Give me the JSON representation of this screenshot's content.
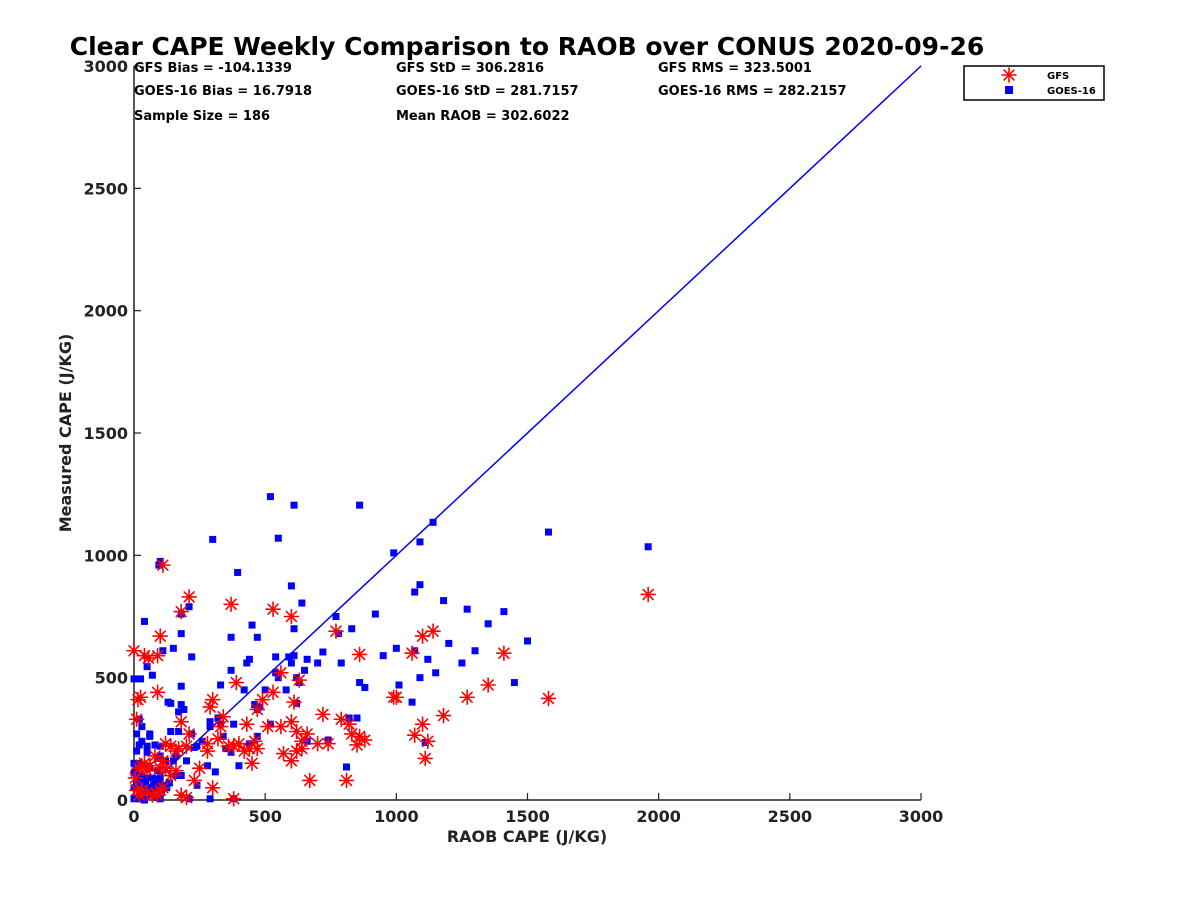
{
  "chart_data": {
    "type": "scatter",
    "title": "Clear CAPE Weekly Comparison to RAOB over CONUS 2020-09-26",
    "xlabel": "RAOB CAPE (J/KG)",
    "ylabel": "Measured CAPE (J/KG)",
    "xlim": [
      0,
      3000
    ],
    "ylim": [
      0,
      3000
    ],
    "xticks": [
      "0",
      "500",
      "1000",
      "1500",
      "2000",
      "2500",
      "3000"
    ],
    "yticks": [
      "0",
      "500",
      "1000",
      "1500",
      "2000",
      "2500",
      "3000"
    ],
    "grid": false,
    "legend_position": "top-right, outside plot",
    "reference_line": {
      "from": [
        0,
        0
      ],
      "to": [
        3000,
        3000
      ],
      "color": "#0000ff"
    },
    "stats": {
      "gfs_bias": "GFS Bias = -104.1339",
      "gfs_std": "GFS StD = 306.2816",
      "gfs_rms": "GFS RMS = 323.5001",
      "goes_bias": "GOES-16 Bias = 16.7918",
      "goes_std": "GOES-16 StD = 281.7157",
      "goes_rms": "GOES-16 RMS = 282.2157",
      "sample_size": "Sample Size = 186",
      "mean_raob": "Mean RAOB = 302.6022"
    },
    "series": [
      {
        "name": "GFS",
        "marker": "asterisk",
        "color": "#ff0000",
        "points": [
          [
            0,
            610
          ],
          [
            15,
            410
          ],
          [
            25,
            420
          ],
          [
            40,
            590
          ],
          [
            55,
            580
          ],
          [
            90,
            590
          ],
          [
            100,
            670
          ],
          [
            110,
            960
          ],
          [
            180,
            770
          ],
          [
            210,
            830
          ],
          [
            370,
            800
          ],
          [
            530,
            780
          ],
          [
            600,
            750
          ],
          [
            770,
            690
          ],
          [
            1100,
            670
          ],
          [
            1140,
            690
          ],
          [
            1410,
            600
          ],
          [
            1580,
            415
          ],
          [
            1960,
            840
          ],
          [
            1060,
            600
          ],
          [
            860,
            595
          ],
          [
            1270,
            420
          ],
          [
            1350,
            470
          ],
          [
            990,
            420
          ],
          [
            1000,
            420
          ],
          [
            1180,
            345
          ],
          [
            1100,
            310
          ],
          [
            1120,
            240
          ],
          [
            1110,
            170
          ],
          [
            1070,
            265
          ],
          [
            880,
            245
          ],
          [
            860,
            260
          ],
          [
            850,
            225
          ],
          [
            830,
            270
          ],
          [
            790,
            330
          ],
          [
            820,
            310
          ],
          [
            740,
            230
          ],
          [
            720,
            350
          ],
          [
            660,
            270
          ],
          [
            670,
            80
          ],
          [
            810,
            80
          ],
          [
            560,
            520
          ],
          [
            530,
            440
          ],
          [
            610,
            400
          ],
          [
            600,
            320
          ],
          [
            620,
            280
          ],
          [
            600,
            160
          ],
          [
            620,
            200
          ],
          [
            640,
            210
          ],
          [
            630,
            490
          ],
          [
            560,
            300
          ],
          [
            510,
            300
          ],
          [
            490,
            410
          ],
          [
            470,
            370
          ],
          [
            460,
            240
          ],
          [
            450,
            150
          ],
          [
            440,
            210
          ],
          [
            420,
            200
          ],
          [
            400,
            230
          ],
          [
            390,
            480
          ],
          [
            380,
            220
          ],
          [
            360,
            220
          ],
          [
            330,
            300
          ],
          [
            320,
            250
          ],
          [
            300,
            410
          ],
          [
            290,
            380
          ],
          [
            280,
            230
          ],
          [
            300,
            50
          ],
          [
            380,
            5
          ],
          [
            210,
            270
          ],
          [
            200,
            220
          ],
          [
            180,
            320
          ],
          [
            170,
            210
          ],
          [
            160,
            200
          ],
          [
            140,
            220
          ],
          [
            120,
            230
          ],
          [
            110,
            160
          ],
          [
            100,
            130
          ],
          [
            90,
            440
          ],
          [
            80,
            180
          ],
          [
            60,
            140
          ],
          [
            50,
            120
          ],
          [
            40,
            150
          ],
          [
            30,
            140
          ],
          [
            20,
            130
          ],
          [
            10,
            330
          ],
          [
            5,
            90
          ],
          [
            10,
            40
          ],
          [
            20,
            20
          ],
          [
            30,
            40
          ],
          [
            50,
            30
          ],
          [
            70,
            20
          ],
          [
            90,
            20
          ],
          [
            100,
            40
          ],
          [
            110,
            50
          ],
          [
            120,
            130
          ],
          [
            140,
            100
          ],
          [
            160,
            120
          ],
          [
            180,
            20
          ],
          [
            200,
            10
          ],
          [
            230,
            80
          ],
          [
            250,
            130
          ],
          [
            280,
            200
          ],
          [
            340,
            340
          ],
          [
            430,
            310
          ],
          [
            470,
            210
          ],
          [
            570,
            190
          ],
          [
            640,
            240
          ],
          [
            700,
            230
          ]
        ]
      },
      {
        "name": "GOES-16",
        "marker": "square",
        "color": "#0000ff",
        "points": [
          [
            520,
            1240
          ],
          [
            610,
            1205
          ],
          [
            860,
            1205
          ],
          [
            1140,
            1135
          ],
          [
            1580,
            1095
          ],
          [
            1960,
            1035
          ],
          [
            300,
            1065
          ],
          [
            550,
            1070
          ],
          [
            990,
            1010
          ],
          [
            1090,
            1055
          ],
          [
            100,
            975
          ],
          [
            95,
            960
          ],
          [
            395,
            930
          ],
          [
            600,
            875
          ],
          [
            1090,
            880
          ],
          [
            1070,
            850
          ],
          [
            1180,
            815
          ],
          [
            210,
            790
          ],
          [
            640,
            805
          ],
          [
            1270,
            780
          ],
          [
            1410,
            770
          ],
          [
            180,
            760
          ],
          [
            770,
            750
          ],
          [
            40,
            730
          ],
          [
            1350,
            720
          ],
          [
            450,
            715
          ],
          [
            610,
            700
          ],
          [
            180,
            680
          ],
          [
            370,
            665
          ],
          [
            470,
            665
          ],
          [
            1000,
            620
          ],
          [
            150,
            620
          ],
          [
            110,
            610
          ],
          [
            1070,
            610
          ],
          [
            720,
            605
          ],
          [
            1120,
            575
          ],
          [
            220,
            585
          ],
          [
            540,
            585
          ],
          [
            590,
            585
          ],
          [
            610,
            590
          ],
          [
            660,
            575
          ],
          [
            440,
            575
          ],
          [
            430,
            560
          ],
          [
            600,
            560
          ],
          [
            790,
            560
          ],
          [
            50,
            545
          ],
          [
            370,
            530
          ],
          [
            650,
            530
          ],
          [
            540,
            520
          ],
          [
            620,
            500
          ],
          [
            70,
            510
          ],
          [
            1090,
            500
          ],
          [
            25,
            495
          ],
          [
            0,
            495
          ],
          [
            630,
            480
          ],
          [
            860,
            480
          ],
          [
            880,
            460
          ],
          [
            180,
            465
          ],
          [
            330,
            470
          ],
          [
            500,
            450
          ],
          [
            460,
            390
          ],
          [
            470,
            370
          ],
          [
            620,
            395
          ],
          [
            850,
            335
          ],
          [
            820,
            335
          ],
          [
            130,
            400
          ],
          [
            140,
            395
          ],
          [
            180,
            390
          ],
          [
            320,
            335
          ],
          [
            330,
            310
          ],
          [
            380,
            310
          ],
          [
            290,
            300
          ],
          [
            290,
            320
          ],
          [
            520,
            310
          ],
          [
            20,
            330
          ],
          [
            30,
            300
          ],
          [
            140,
            280
          ],
          [
            170,
            280
          ],
          [
            60,
            270
          ],
          [
            10,
            270
          ],
          [
            30,
            240
          ],
          [
            20,
            225
          ],
          [
            50,
            220
          ],
          [
            80,
            225
          ],
          [
            100,
            220
          ],
          [
            230,
            215
          ],
          [
            370,
            195
          ],
          [
            440,
            230
          ],
          [
            470,
            260
          ],
          [
            660,
            240
          ],
          [
            740,
            245
          ],
          [
            1110,
            235
          ],
          [
            10,
            200
          ],
          [
            50,
            195
          ],
          [
            90,
            170
          ],
          [
            100,
            180
          ],
          [
            120,
            160
          ],
          [
            150,
            160
          ],
          [
            200,
            160
          ],
          [
            20,
            150
          ],
          [
            40,
            140
          ],
          [
            60,
            130
          ],
          [
            90,
            120
          ],
          [
            0,
            110
          ],
          [
            20,
            100
          ],
          [
            30,
            95
          ],
          [
            50,
            90
          ],
          [
            70,
            90
          ],
          [
            80,
            85
          ],
          [
            100,
            90
          ],
          [
            160,
            100
          ],
          [
            180,
            100
          ],
          [
            310,
            115
          ],
          [
            810,
            135
          ],
          [
            0,
            50
          ],
          [
            10,
            60
          ],
          [
            20,
            45
          ],
          [
            30,
            40
          ],
          [
            40,
            30
          ],
          [
            50,
            35
          ],
          [
            60,
            20
          ],
          [
            70,
            25
          ],
          [
            80,
            15
          ],
          [
            90,
            10
          ],
          [
            0,
            5
          ],
          [
            10,
            10
          ],
          [
            20,
            5
          ],
          [
            30,
            5
          ],
          [
            40,
            0
          ],
          [
            100,
            5
          ],
          [
            210,
            5
          ],
          [
            290,
            5
          ],
          [
            380,
            5
          ],
          [
            0,
            150
          ],
          [
            5,
            120
          ],
          [
            10,
            80
          ],
          [
            15,
            60
          ],
          [
            25,
            70
          ],
          [
            35,
            55
          ],
          [
            45,
            65
          ],
          [
            55,
            50
          ],
          [
            65,
            45
          ],
          [
            75,
            60
          ],
          [
            85,
            55
          ],
          [
            95,
            75
          ],
          [
            105,
            40
          ],
          [
            115,
            60
          ],
          [
            125,
            50
          ],
          [
            135,
            70
          ],
          [
            60,
            260
          ],
          [
            170,
            360
          ],
          [
            190,
            370
          ],
          [
            220,
            270
          ],
          [
            260,
            240
          ],
          [
            350,
            210
          ],
          [
            420,
            450
          ],
          [
            480,
            380
          ],
          [
            550,
            500
          ],
          [
            580,
            450
          ],
          [
            700,
            560
          ],
          [
            780,
            680
          ],
          [
            830,
            700
          ],
          [
            920,
            760
          ],
          [
            950,
            590
          ],
          [
            1010,
            470
          ],
          [
            1060,
            400
          ],
          [
            1150,
            520
          ],
          [
            1200,
            640
          ],
          [
            1250,
            560
          ],
          [
            1300,
            610
          ],
          [
            1450,
            480
          ],
          [
            1500,
            650
          ],
          [
            160,
            180
          ],
          [
            240,
            220
          ],
          [
            280,
            140
          ],
          [
            340,
            260
          ],
          [
            400,
            140
          ],
          [
            240,
            60
          ]
        ]
      }
    ]
  }
}
